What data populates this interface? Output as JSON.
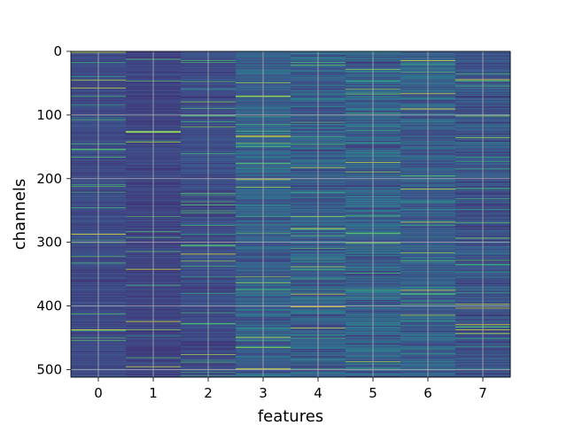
{
  "chart_data": {
    "type": "heatmap",
    "title": "",
    "xlabel": "features",
    "ylabel": "channels",
    "x_categories": [
      "0",
      "1",
      "2",
      "3",
      "4",
      "5",
      "6",
      "7"
    ],
    "n_channels": 512,
    "y_ticks": [
      0,
      100,
      200,
      300,
      400,
      500
    ],
    "ylim": [
      512,
      0
    ],
    "colormap": "viridis",
    "grid": true,
    "grid_color": "#b0b0b0",
    "column_profiles": [
      {
        "feature": "0",
        "mean": 0.22,
        "spread": 0.1
      },
      {
        "feature": "1",
        "mean": 0.2,
        "spread": 0.1
      },
      {
        "feature": "2",
        "mean": 0.22,
        "spread": 0.13
      },
      {
        "feature": "3",
        "mean": 0.3,
        "spread": 0.22
      },
      {
        "feature": "4",
        "mean": 0.3,
        "spread": 0.26
      },
      {
        "feature": "5",
        "mean": 0.3,
        "spread": 0.26
      },
      {
        "feature": "6",
        "mean": 0.3,
        "spread": 0.24
      },
      {
        "feature": "7",
        "mean": 0.25,
        "spread": 0.2
      }
    ]
  }
}
